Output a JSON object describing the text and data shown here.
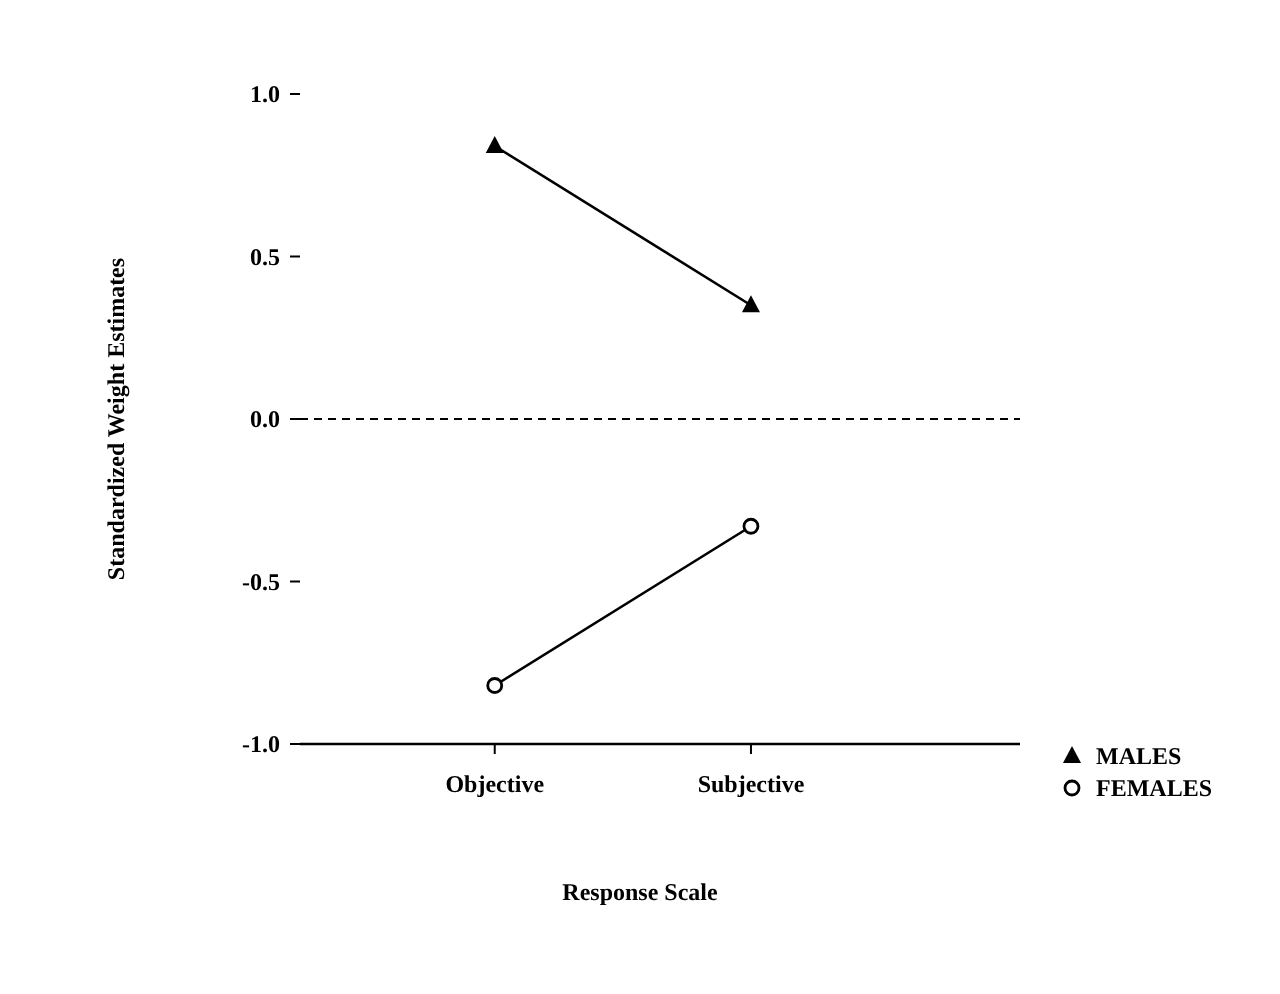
{
  "chart_data": {
    "type": "line",
    "xlabel": "Response Scale",
    "ylabel": "Standardized Weight Estimates",
    "categories": [
      "Objective",
      "Subjective"
    ],
    "series": [
      {
        "name": "MALES",
        "color": "#000000",
        "marker": "triangle",
        "values": [
          0.84,
          0.35
        ]
      },
      {
        "name": "FEMALES",
        "color": "#000000",
        "marker": "circle",
        "values": [
          -0.82,
          -0.33
        ]
      }
    ],
    "ylim": [
      -1,
      1
    ],
    "yticks": [
      {
        "value": -1,
        "label": "-1.0"
      },
      {
        "value": -0.5,
        "label": "-0.5"
      },
      {
        "value": 0,
        "label": "0.0"
      },
      {
        "value": 0.5,
        "label": "0.5"
      },
      {
        "value": 1,
        "label": "1.0"
      }
    ],
    "ref_lines": [
      {
        "axis": "y",
        "value": 0,
        "line_style": "dashed"
      }
    ],
    "legend": "bottom right",
    "grid": false
  }
}
